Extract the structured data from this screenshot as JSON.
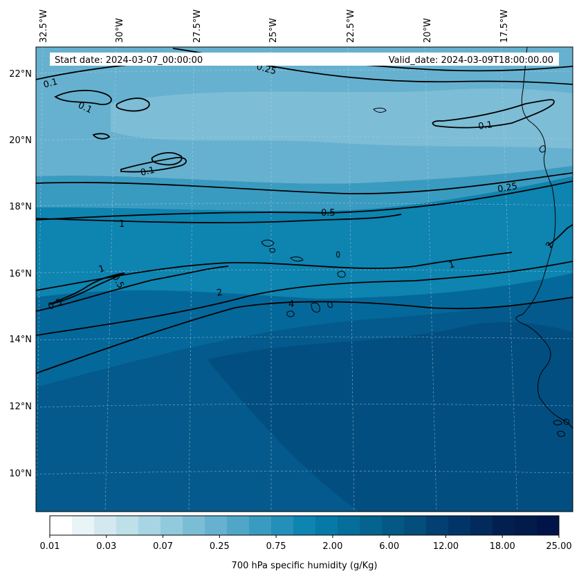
{
  "header": {
    "start_date": "Start date: 2024-03-07_00:00:00",
    "valid_date": "Valid_date: 2024-03-09T18:00:00.00"
  },
  "axes": {
    "lon_labels": [
      "32.5°W",
      "30°W",
      "27.5°W",
      "25°W",
      "22.5°W",
      "20°W",
      "17.5°W"
    ],
    "lat_labels": [
      "22°N",
      "20°N",
      "18°N",
      "16°N",
      "14°N",
      "12°N",
      "10°N"
    ]
  },
  "contour_labels": [
    "0.1",
    "0.1",
    "0.1",
    "0.1",
    "0.25",
    "0.25",
    "0.5",
    "1",
    "1",
    "0.5",
    "0.5",
    "1",
    "2",
    "4",
    "2"
  ],
  "colorbar": {
    "title": "700 hPa specific humidity (g/Kg)",
    "tick_labels": [
      "0.01",
      "0.03",
      "0.07",
      "0.25",
      "0.75",
      "2.00",
      "6.00",
      "12.00",
      "18.00",
      "25.00"
    ],
    "colors": [
      "#ffffff",
      "#e9f4f7",
      "#d3e9ef",
      "#bde0e9",
      "#a8d5e3",
      "#92cadd",
      "#7cbdd6",
      "#66b1cf",
      "#50a6c8",
      "#3a9bc0",
      "#248fb8",
      "#0e84b0",
      "#0779a6",
      "#056e9a",
      "#05638f",
      "#045884",
      "#034e7b",
      "#033f70",
      "#023567",
      "#022a5c",
      "#012050",
      "#011b4a",
      "#01144a"
    ]
  },
  "field_colors": {
    "dry_light": "#7dbdd5",
    "dry_mid": "#66b1cf",
    "band_1": "#3a9bc0",
    "band_2": "#0e84b0",
    "moist_1": "#05689a",
    "moist_2": "#045a8c",
    "moist_3": "#034e80"
  }
}
